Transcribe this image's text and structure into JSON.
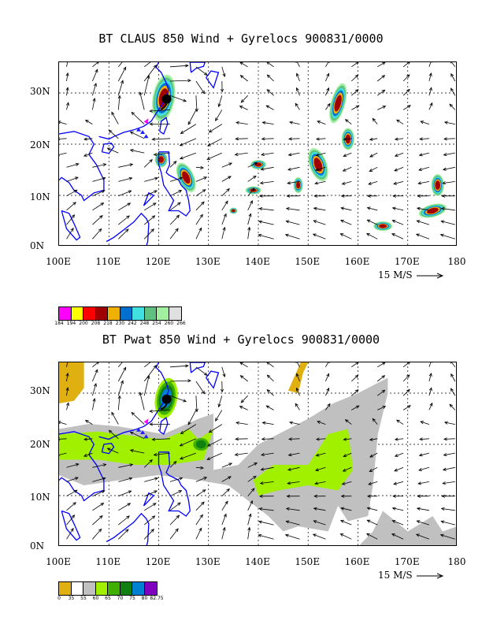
{
  "panels": [
    {
      "title": "BT CLAUS 850 Wind + Gyrelocs 900831/0000",
      "y_labels": [
        "30N",
        "20N",
        "10N",
        "0N"
      ],
      "x_labels": [
        "100E",
        "110E",
        "120E",
        "130E",
        "140E",
        "150E",
        "160E",
        "170E",
        "180"
      ],
      "reference_vector": "15 M/S",
      "colorbar": {
        "colors": [
          "#ff00ff",
          "#ffff00",
          "#ff0000",
          "#a00000",
          "#f0b000",
          "#0070d0",
          "#40e0e0",
          "#60c080",
          "#a0f0a0",
          "#e0e0e0"
        ],
        "labels": [
          "184",
          "194",
          "200",
          "208",
          "218",
          "230",
          "242",
          "248",
          "254",
          "260",
          "266"
        ]
      }
    },
    {
      "title": "BT Pwat 850 Wind + Gyrelocs 900831/0000",
      "y_labels": [
        "30N",
        "20N",
        "10N",
        "0N"
      ],
      "x_labels": [
        "100E",
        "110E",
        "120E",
        "130E",
        "140E",
        "150E",
        "160E",
        "170E",
        "180"
      ],
      "reference_vector": "15 M/S",
      "colorbar": {
        "colors": [
          "#e0b010",
          "#ffffff",
          "#c0c0c0",
          "#a0f000",
          "#40b000",
          "#108010",
          "#0080d0",
          "#8000c0"
        ],
        "labels": [
          "0",
          "35",
          "55",
          "60",
          "65",
          "70",
          "75",
          "80",
          "82.75"
        ]
      }
    }
  ],
  "map": {
    "lon_range": [
      100,
      180
    ],
    "lat_range": [
      0,
      36
    ],
    "grid": true,
    "coastline_color": "#0000ff",
    "cyclone_marker_color": "#000000",
    "gyre_marker_color": "#ff00ff"
  }
}
